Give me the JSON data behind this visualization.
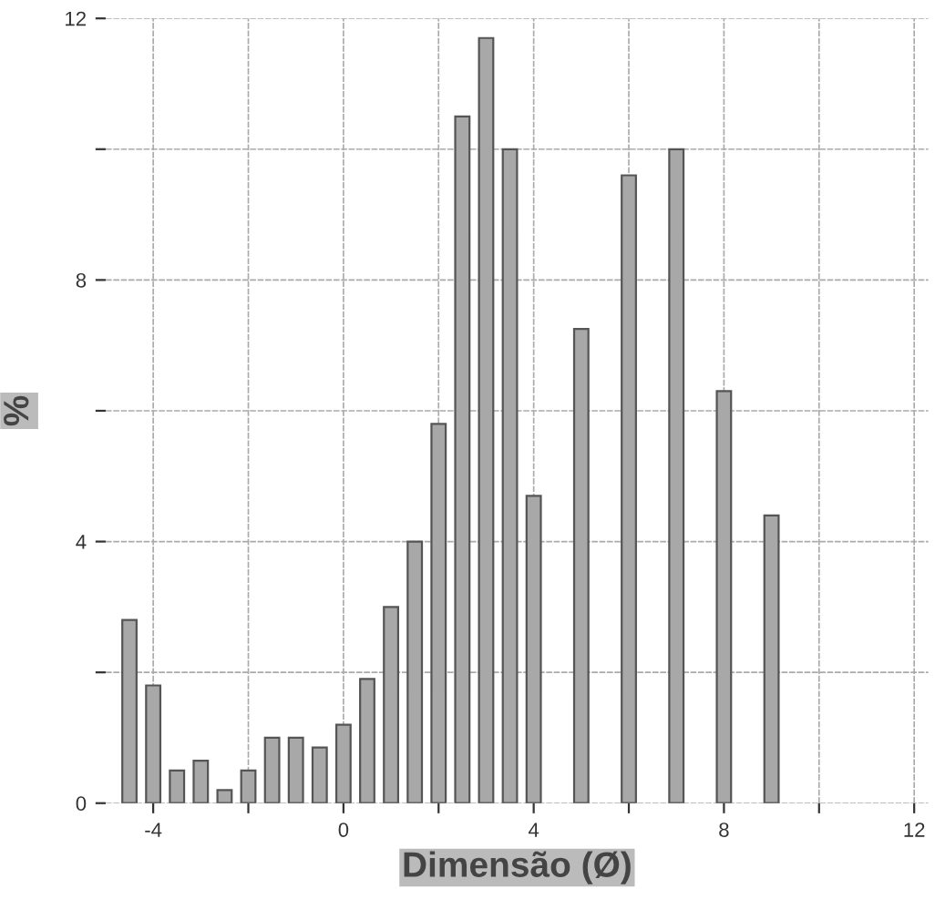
{
  "chart_data": {
    "type": "bar",
    "xlabel": "Dimensão (Ø)",
    "ylabel": "%",
    "x": [
      -4.5,
      -4,
      -3.5,
      -3,
      -2.5,
      -2,
      -1.5,
      -1,
      -0.5,
      0,
      0.5,
      1,
      1.5,
      2,
      2.5,
      3,
      3.5,
      4,
      5,
      6,
      7,
      8,
      9
    ],
    "values": [
      2.8,
      1.8,
      0.5,
      0.65,
      0.2,
      0.5,
      1.0,
      1.0,
      0.85,
      1.2,
      1.9,
      3.0,
      4.0,
      5.8,
      10.5,
      11.7,
      10.0,
      4.7,
      7.25,
      9.6,
      10.0,
      6.3,
      4.4
    ],
    "color": "#a8a8a8",
    "xlim": [
      -5,
      12.3
    ],
    "ylim": [
      0,
      12
    ],
    "xticks": [
      -4,
      {
        "value": -2,
        "label": null
      },
      0,
      {
        "value": 2,
        "label": null
      },
      4,
      {
        "value": 6,
        "label": null
      },
      8,
      {
        "value": 10,
        "label": null
      },
      12
    ],
    "yticks": [
      0,
      {
        "value": 2,
        "label": null
      },
      4,
      {
        "value": 6,
        "label": null
      },
      8,
      {
        "value": 10,
        "label": null
      },
      12
    ],
    "grid": true,
    "legend": false
  }
}
